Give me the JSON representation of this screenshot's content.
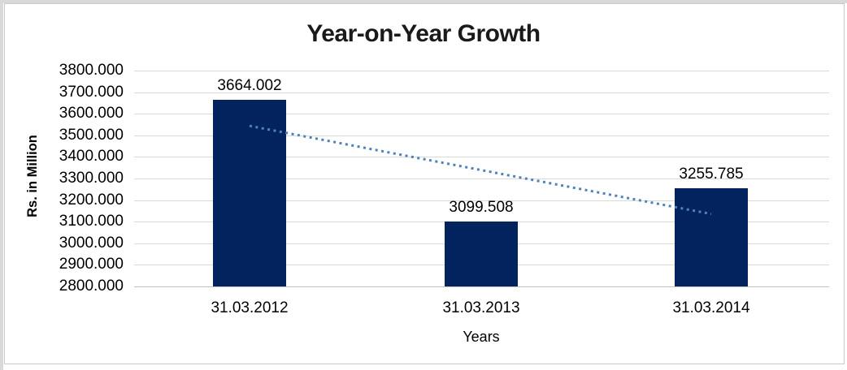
{
  "window": {
    "edge_strip_color": "#d9d9d9",
    "frame_border_color": "#c9c9c9",
    "background": "#ffffff"
  },
  "chart_data": {
    "type": "bar",
    "title": "Year-on-Year Growth",
    "xlabel": "Years",
    "ylabel": "Rs. in Million",
    "categories": [
      "31.03.2012",
      "31.03.2013",
      "31.03.2014"
    ],
    "values": [
      3664.002,
      3099.508,
      3255.785
    ],
    "data_labels": [
      "3664.002",
      "3099.508",
      "3255.785"
    ],
    "ylim": [
      2800,
      3800
    ],
    "ytick_step": 100,
    "yticks": [
      "3800.000",
      "3700.000",
      "3600.000",
      "3500.000",
      "3400.000",
      "3300.000",
      "3200.000",
      "3100.000",
      "3000.000",
      "2900.000",
      "2800.000"
    ],
    "grid": true,
    "legend": "none",
    "bar_color": "#03235f",
    "gridline_color": "#d9d9d9",
    "axis_line_color": "#bfbfbf",
    "text_color": "#000000",
    "trendline": {
      "type": "linear",
      "style": "dotted",
      "color": "#4f81bd",
      "start_value": 3543.9,
      "end_value": 3135.7
    }
  }
}
